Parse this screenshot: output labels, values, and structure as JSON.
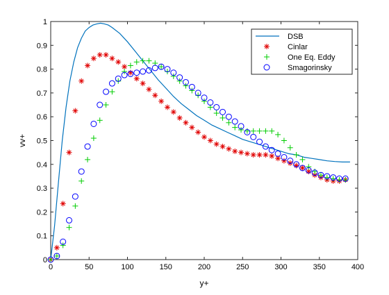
{
  "chart_data": {
    "type": "scatter",
    "xlabel": "y+",
    "ylabel": "vv+",
    "xlim": [
      0,
      400
    ],
    "ylim": [
      0,
      1
    ],
    "xticks": [
      0,
      50,
      100,
      150,
      200,
      250,
      300,
      350,
      400
    ],
    "yticks": [
      0,
      0.1,
      0.2,
      0.3,
      0.4,
      0.5,
      0.6,
      0.7,
      0.8,
      0.9,
      1
    ],
    "grid": false,
    "legend_position": "top-right",
    "series": [
      {
        "name": "DSB",
        "kind": "line",
        "color": "#0072BD",
        "x": [
          0,
          5,
          10,
          15,
          20,
          25,
          30,
          35,
          40,
          45,
          50,
          55,
          60,
          65,
          70,
          75,
          80,
          90,
          100,
          110,
          120,
          130,
          140,
          150,
          160,
          170,
          180,
          190,
          200,
          210,
          220,
          230,
          240,
          250,
          260,
          270,
          280,
          290,
          300,
          310,
          320,
          330,
          340,
          350,
          360,
          370,
          380,
          390
        ],
        "y": [
          0,
          0.14,
          0.32,
          0.5,
          0.64,
          0.75,
          0.83,
          0.89,
          0.93,
          0.96,
          0.975,
          0.985,
          0.99,
          0.993,
          0.99,
          0.985,
          0.975,
          0.95,
          0.915,
          0.875,
          0.835,
          0.795,
          0.755,
          0.72,
          0.685,
          0.655,
          0.63,
          0.605,
          0.585,
          0.565,
          0.55,
          0.535,
          0.52,
          0.505,
          0.495,
          0.485,
          0.475,
          0.465,
          0.455,
          0.445,
          0.44,
          0.43,
          0.425,
          0.42,
          0.415,
          0.412,
          0.41,
          0.41
        ]
      },
      {
        "name": "Cinlar",
        "kind": "marker",
        "marker": "asterisk",
        "color": "#e00000",
        "x": [
          0,
          8,
          16,
          24,
          32,
          40,
          48,
          56,
          64,
          72,
          80,
          88,
          96,
          104,
          112,
          120,
          128,
          136,
          144,
          152,
          160,
          168,
          176,
          184,
          192,
          200,
          208,
          216,
          224,
          232,
          240,
          248,
          256,
          264,
          272,
          280,
          288,
          296,
          304,
          312,
          320,
          328,
          336,
          344,
          352,
          360,
          368,
          376,
          384
        ],
        "y": [
          0,
          0.05,
          0.235,
          0.45,
          0.625,
          0.75,
          0.815,
          0.845,
          0.86,
          0.86,
          0.845,
          0.83,
          0.81,
          0.785,
          0.76,
          0.74,
          0.715,
          0.69,
          0.665,
          0.64,
          0.62,
          0.595,
          0.575,
          0.555,
          0.535,
          0.515,
          0.5,
          0.485,
          0.475,
          0.465,
          0.455,
          0.45,
          0.445,
          0.44,
          0.44,
          0.44,
          0.435,
          0.425,
          0.415,
          0.405,
          0.395,
          0.385,
          0.37,
          0.355,
          0.345,
          0.335,
          0.33,
          0.33,
          0.335
        ]
      },
      {
        "name": "One Eq. Eddy",
        "kind": "marker",
        "marker": "plus",
        "color": "#00cc00",
        "x": [
          0,
          8,
          16,
          24,
          32,
          40,
          48,
          56,
          64,
          72,
          80,
          88,
          96,
          104,
          112,
          120,
          128,
          136,
          144,
          152,
          160,
          168,
          176,
          184,
          192,
          200,
          208,
          216,
          224,
          232,
          240,
          248,
          256,
          264,
          272,
          280,
          288,
          296,
          304,
          312,
          320,
          328,
          336,
          344,
          352,
          360,
          368,
          376,
          384
        ],
        "y": [
          0,
          0.015,
          0.06,
          0.135,
          0.225,
          0.33,
          0.42,
          0.51,
          0.585,
          0.65,
          0.705,
          0.75,
          0.79,
          0.815,
          0.83,
          0.835,
          0.835,
          0.825,
          0.81,
          0.79,
          0.77,
          0.75,
          0.73,
          0.71,
          0.69,
          0.665,
          0.64,
          0.615,
          0.595,
          0.575,
          0.555,
          0.545,
          0.54,
          0.54,
          0.54,
          0.54,
          0.54,
          0.525,
          0.5,
          0.47,
          0.44,
          0.42,
          0.39,
          0.37,
          0.355,
          0.345,
          0.34,
          0.335,
          0.335
        ]
      },
      {
        "name": "Smagorinsky",
        "kind": "marker",
        "marker": "circle",
        "color": "#0000ff",
        "x": [
          0,
          8,
          16,
          24,
          32,
          40,
          48,
          56,
          64,
          72,
          80,
          88,
          96,
          104,
          112,
          120,
          128,
          136,
          144,
          152,
          160,
          168,
          176,
          184,
          192,
          200,
          208,
          216,
          224,
          232,
          240,
          248,
          256,
          264,
          272,
          280,
          288,
          296,
          304,
          312,
          320,
          328,
          336,
          344,
          352,
          360,
          368,
          376,
          384
        ],
        "y": [
          0,
          0.015,
          0.075,
          0.165,
          0.265,
          0.37,
          0.475,
          0.57,
          0.65,
          0.705,
          0.74,
          0.76,
          0.775,
          0.78,
          0.785,
          0.79,
          0.795,
          0.805,
          0.81,
          0.8,
          0.785,
          0.765,
          0.745,
          0.725,
          0.7,
          0.68,
          0.66,
          0.64,
          0.62,
          0.6,
          0.58,
          0.56,
          0.535,
          0.515,
          0.495,
          0.475,
          0.46,
          0.445,
          0.43,
          0.415,
          0.4,
          0.385,
          0.375,
          0.365,
          0.355,
          0.35,
          0.345,
          0.34,
          0.34
        ]
      }
    ]
  }
}
